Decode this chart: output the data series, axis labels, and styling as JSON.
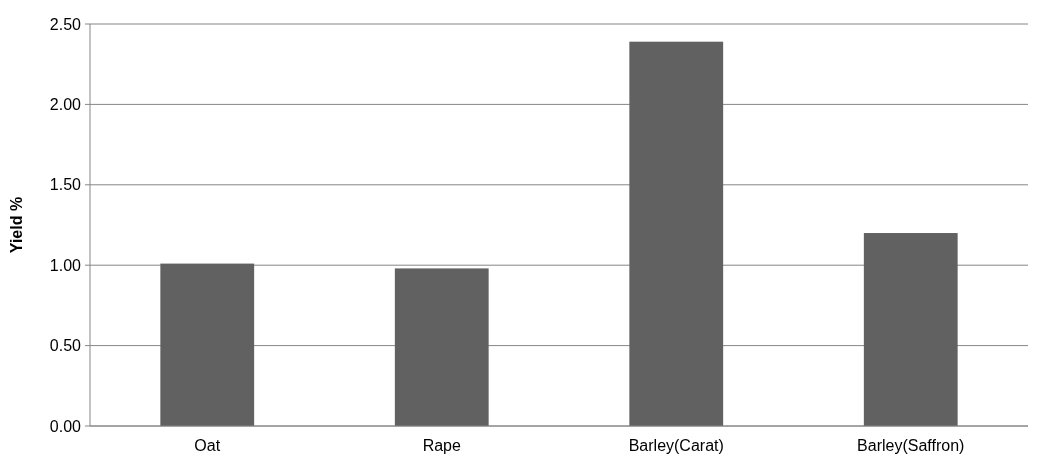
{
  "chart_data": {
    "type": "bar",
    "ylabel": "Yield %",
    "categories": [
      "Oat",
      "Rape",
      "Barley(Carat)",
      "Barley(Saffron)"
    ],
    "values": [
      1.01,
      0.98,
      2.39,
      1.2
    ],
    "color": "#616161",
    "ylim": [
      0,
      2.5
    ],
    "yticks": [
      {
        "value": 0,
        "label": "0.00"
      },
      {
        "value": 0.5,
        "label": "0.50"
      },
      {
        "value": 1,
        "label": "1.00"
      },
      {
        "value": 1.5,
        "label": "1.50"
      },
      {
        "value": 2,
        "label": "2.00"
      },
      {
        "value": 2.5,
        "label": "2.50"
      }
    ],
    "grid": "y"
  }
}
